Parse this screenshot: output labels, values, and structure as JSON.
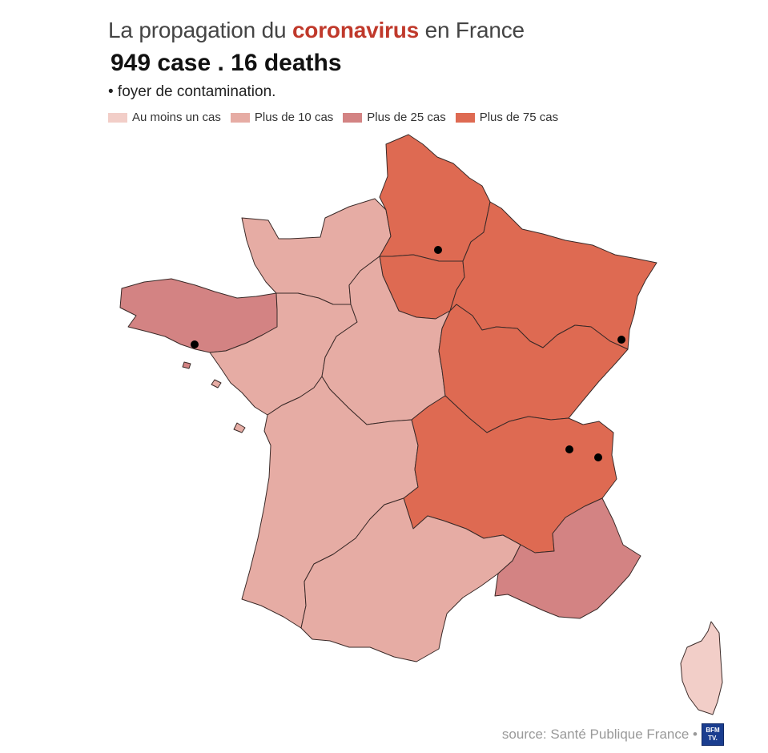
{
  "header": {
    "title_prefix": "La propagation du ",
    "title_highlight": "coronavirus",
    "title_suffix": " en France",
    "headline": "949 case . 16 deaths",
    "note": "• foyer de contamination."
  },
  "legend": [
    {
      "label": "Au moins un cas",
      "color": "#f2cec8"
    },
    {
      "label": "Plus de 10 cas",
      "color": "#e6aca4"
    },
    {
      "label": "Plus de 25 cas",
      "color": "#d38383"
    },
    {
      "label": "Plus de 75 cas",
      "color": "#de6a52"
    }
  ],
  "regions": [
    {
      "key": "normandie",
      "level": 1
    },
    {
      "key": "hauts-de-france",
      "level": 3
    },
    {
      "key": "ile-de-france",
      "level": 3
    },
    {
      "key": "grand-est",
      "level": 3
    },
    {
      "key": "bretagne",
      "level": 2
    },
    {
      "key": "pays-de-la-loire",
      "level": 1
    },
    {
      "key": "centre-val-de-loire",
      "level": 1
    },
    {
      "key": "bourgogne-franche-comte",
      "level": 3
    },
    {
      "key": "nouvelle-aquitaine",
      "level": 1
    },
    {
      "key": "auvergne-rhone-alpes",
      "level": 3
    },
    {
      "key": "occitanie",
      "level": 1
    },
    {
      "key": "provence-alpes-cote-d-azur",
      "level": 2
    },
    {
      "key": "corse",
      "level": 0
    }
  ],
  "footer": {
    "source": "source: Santé Publique France •",
    "logo": "BFM TV."
  },
  "colors": {
    "title_highlight": "#c0392b",
    "border": "#3a2a28",
    "dot": "#000000"
  }
}
